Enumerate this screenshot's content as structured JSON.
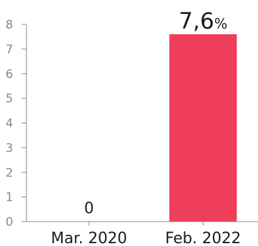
{
  "chart_data": {
    "type": "bar",
    "categories": [
      "Mar. 2020",
      "Feb. 2022"
    ],
    "values": [
      0,
      7.6
    ],
    "value_labels": [
      "0",
      "7,6"
    ],
    "value_unit": "%",
    "y_ticks": [
      "0",
      "1",
      "2",
      "3",
      "4",
      "5",
      "6",
      "7",
      "8"
    ],
    "ylim": [
      0,
      8
    ],
    "grid": false,
    "colors": {
      "bar": "#ee3e5a",
      "axis": "#8a8a80",
      "text": "#1a1a1a"
    }
  }
}
